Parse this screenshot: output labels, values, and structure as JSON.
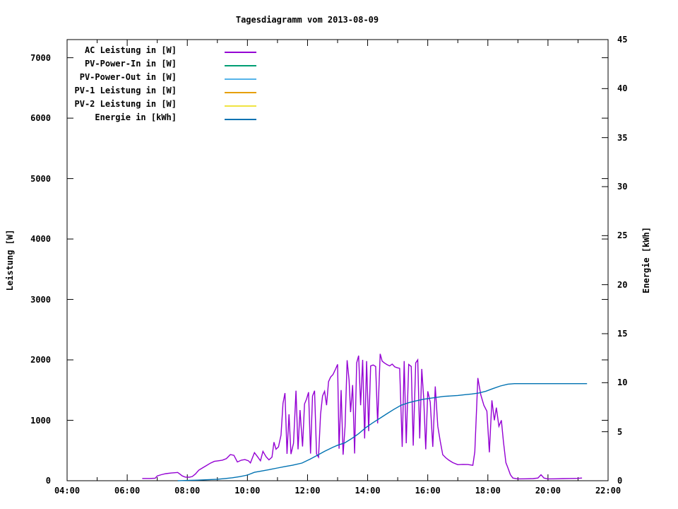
{
  "title": "Tagesdiagramm vom 2013-08-09",
  "chart_data": {
    "type": "line",
    "title": "Tagesdiagramm vom 2013-08-09",
    "grid": false,
    "legend_position": "top-left-inside",
    "x_axis": {
      "label": "",
      "unit": "time",
      "range_hours": [
        4,
        22
      ],
      "tick_labels": [
        "04:00",
        "06:00",
        "08:00",
        "10:00",
        "12:00",
        "14:00",
        "16:00",
        "18:00",
        "20:00",
        "22:00"
      ],
      "minor_tick_every_hour": true
    },
    "y_axis": {
      "label": "Leistung [W]",
      "ticks": [
        0,
        1000,
        2000,
        3000,
        4000,
        5000,
        6000,
        7000
      ],
      "range": [
        0,
        7300
      ]
    },
    "y2_axis": {
      "label": "Energie [kWh]",
      "ticks": [
        0,
        5,
        10,
        15,
        20,
        25,
        30,
        35,
        40,
        45
      ],
      "range": [
        0,
        45
      ]
    },
    "legend": [
      {
        "label": "AC Leistung in [W]",
        "color": "#9400d3"
      },
      {
        "label": "PV-Power-In in [W]",
        "color": "#009e73"
      },
      {
        "label": "PV-Power-Out in [W]",
        "color": "#56b4e9"
      },
      {
        "label": "PV-1 Leistung in [W]",
        "color": "#e69f00"
      },
      {
        "label": "PV-2 Leistung in [W]",
        "color": "#f0e442"
      },
      {
        "label": "Energie in [kWh]",
        "color": "#0072b2"
      }
    ],
    "series": [
      {
        "name": "AC Leistung in [W]",
        "color": "#9400d3",
        "axis": "y1",
        "points": [
          [
            "06:30",
            38
          ],
          [
            "06:45",
            38
          ],
          [
            "06:56",
            42
          ],
          [
            "07:00",
            80
          ],
          [
            "07:08",
            100
          ],
          [
            "07:17",
            117
          ],
          [
            "07:28",
            128
          ],
          [
            "07:41",
            137
          ],
          [
            "07:50",
            80
          ],
          [
            "07:56",
            60
          ],
          [
            "08:04",
            58
          ],
          [
            "08:10",
            70
          ],
          [
            "08:16",
            110
          ],
          [
            "08:23",
            176
          ],
          [
            "08:30",
            210
          ],
          [
            "08:38",
            250
          ],
          [
            "08:46",
            290
          ],
          [
            "08:54",
            320
          ],
          [
            "09:02",
            330
          ],
          [
            "09:10",
            340
          ],
          [
            "09:18",
            365
          ],
          [
            "09:26",
            433
          ],
          [
            "09:33",
            420
          ],
          [
            "09:40",
            310
          ],
          [
            "09:48",
            340
          ],
          [
            "09:55",
            350
          ],
          [
            "10:02",
            330
          ],
          [
            "10:06",
            295
          ],
          [
            "10:14",
            464
          ],
          [
            "10:20",
            400
          ],
          [
            "10:26",
            330
          ],
          [
            "10:31",
            487
          ],
          [
            "10:37",
            400
          ],
          [
            "10:43",
            345
          ],
          [
            "10:49",
            390
          ],
          [
            "10:53",
            638
          ],
          [
            "10:57",
            522
          ],
          [
            "11:02",
            560
          ],
          [
            "11:07",
            754
          ],
          [
            "11:11",
            1280
          ],
          [
            "11:15",
            1451
          ],
          [
            "11:19",
            445
          ],
          [
            "11:23",
            1100
          ],
          [
            "11:27",
            440
          ],
          [
            "11:32",
            620
          ],
          [
            "11:37",
            1489
          ],
          [
            "11:41",
            520
          ],
          [
            "11:45",
            1170
          ],
          [
            "11:50",
            566
          ],
          [
            "11:54",
            1270
          ],
          [
            "11:58",
            1350
          ],
          [
            "12:02",
            1465
          ],
          [
            "12:06",
            449
          ],
          [
            "12:10",
            1400
          ],
          [
            "12:14",
            1489
          ],
          [
            "12:18",
            445
          ],
          [
            "12:22",
            390
          ],
          [
            "12:26",
            1100
          ],
          [
            "12:30",
            1404
          ],
          [
            "12:34",
            1480
          ],
          [
            "12:38",
            1250
          ],
          [
            "12:42",
            1640
          ],
          [
            "12:46",
            1715
          ],
          [
            "12:51",
            1760
          ],
          [
            "12:56",
            1850
          ],
          [
            "13:00",
            1926
          ],
          [
            "13:03",
            530
          ],
          [
            "13:07",
            1500
          ],
          [
            "13:11",
            430
          ],
          [
            "13:15",
            900
          ],
          [
            "13:19",
            1993
          ],
          [
            "13:23",
            1660
          ],
          [
            "13:26",
            1135
          ],
          [
            "13:30",
            1583
          ],
          [
            "13:34",
            450
          ],
          [
            "13:38",
            1950
          ],
          [
            "13:42",
            2070
          ],
          [
            "13:46",
            1250
          ],
          [
            "13:50",
            2000
          ],
          [
            "13:54",
            700
          ],
          [
            "13:58",
            1980
          ],
          [
            "14:02",
            820
          ],
          [
            "14:06",
            1900
          ],
          [
            "14:11",
            1915
          ],
          [
            "14:16",
            1890
          ],
          [
            "14:20",
            950
          ],
          [
            "14:25",
            2100
          ],
          [
            "14:29",
            1980
          ],
          [
            "14:34",
            1945
          ],
          [
            "14:39",
            1920
          ],
          [
            "14:44",
            1900
          ],
          [
            "14:49",
            1930
          ],
          [
            "14:54",
            1885
          ],
          [
            "14:59",
            1870
          ],
          [
            "15:04",
            1860
          ],
          [
            "15:09",
            560
          ],
          [
            "15:13",
            1980
          ],
          [
            "15:17",
            620
          ],
          [
            "15:22",
            1925
          ],
          [
            "15:27",
            1890
          ],
          [
            "15:31",
            580
          ],
          [
            "15:36",
            1950
          ],
          [
            "15:40",
            2000
          ],
          [
            "15:44",
            700
          ],
          [
            "15:48",
            1850
          ],
          [
            "15:52",
            1350
          ],
          [
            "15:56",
            520
          ],
          [
            "16:00",
            1480
          ],
          [
            "16:05",
            1300
          ],
          [
            "16:10",
            560
          ],
          [
            "16:15",
            1560
          ],
          [
            "16:20",
            900
          ],
          [
            "16:25",
            650
          ],
          [
            "16:30",
            430
          ],
          [
            "16:36",
            380
          ],
          [
            "16:42",
            340
          ],
          [
            "16:50",
            300
          ],
          [
            "17:00",
            265
          ],
          [
            "17:10",
            270
          ],
          [
            "17:20",
            268
          ],
          [
            "17:30",
            255
          ],
          [
            "17:34",
            480
          ],
          [
            "17:40",
            1700
          ],
          [
            "17:46",
            1420
          ],
          [
            "17:52",
            1250
          ],
          [
            "17:58",
            1150
          ],
          [
            "18:03",
            470
          ],
          [
            "18:08",
            1330
          ],
          [
            "18:13",
            1000
          ],
          [
            "18:17",
            1210
          ],
          [
            "18:22",
            900
          ],
          [
            "18:27",
            1000
          ],
          [
            "18:31",
            650
          ],
          [
            "18:36",
            300
          ],
          [
            "18:40",
            215
          ],
          [
            "18:45",
            100
          ],
          [
            "18:50",
            45
          ],
          [
            "19:00",
            30
          ],
          [
            "19:15",
            32
          ],
          [
            "19:30",
            35
          ],
          [
            "19:40",
            45
          ],
          [
            "19:46",
            100
          ],
          [
            "19:52",
            45
          ],
          [
            "20:00",
            30
          ],
          [
            "20:15",
            32
          ],
          [
            "20:30",
            35
          ],
          [
            "20:45",
            38
          ],
          [
            "21:00",
            40
          ],
          [
            "21:08",
            45
          ]
        ]
      },
      {
        "name": "PV-Power-In in [W]",
        "color": "#009e73",
        "axis": "y1",
        "points": []
      },
      {
        "name": "PV-Power-Out in [W]",
        "color": "#56b4e9",
        "axis": "y1",
        "points": []
      },
      {
        "name": "PV-1 Leistung in [W]",
        "color": "#e69f00",
        "axis": "y1",
        "points": []
      },
      {
        "name": "PV-2 Leistung in [W]",
        "color": "#f0e442",
        "axis": "y1",
        "points": []
      },
      {
        "name": "Energie in [kWh]",
        "color": "#0072b2",
        "axis": "y2",
        "points": [
          [
            "07:41",
            0
          ],
          [
            "08:00",
            0.03
          ],
          [
            "08:20",
            0.06
          ],
          [
            "08:40",
            0.1
          ],
          [
            "09:00",
            0.15
          ],
          [
            "09:15",
            0.22
          ],
          [
            "09:30",
            0.3
          ],
          [
            "09:45",
            0.42
          ],
          [
            "10:00",
            0.58
          ],
          [
            "10:14",
            0.86
          ],
          [
            "10:30",
            1.0
          ],
          [
            "10:45",
            1.15
          ],
          [
            "11:00",
            1.3
          ],
          [
            "11:15",
            1.45
          ],
          [
            "11:30",
            1.58
          ],
          [
            "11:49",
            1.8
          ],
          [
            "12:05",
            2.2
          ],
          [
            "12:20",
            2.6
          ],
          [
            "12:34",
            3.0
          ],
          [
            "12:50",
            3.4
          ],
          [
            "13:00",
            3.62
          ],
          [
            "13:14",
            3.85
          ],
          [
            "13:28",
            4.3
          ],
          [
            "13:42",
            4.8
          ],
          [
            "13:56",
            5.4
          ],
          [
            "14:10",
            5.9
          ],
          [
            "14:24",
            6.35
          ],
          [
            "14:39",
            6.85
          ],
          [
            "14:53",
            7.3
          ],
          [
            "15:07",
            7.7
          ],
          [
            "15:21",
            7.95
          ],
          [
            "15:35",
            8.13
          ],
          [
            "15:50",
            8.3
          ],
          [
            "16:04",
            8.41
          ],
          [
            "16:18",
            8.5
          ],
          [
            "16:32",
            8.6
          ],
          [
            "16:46",
            8.65
          ],
          [
            "17:00",
            8.7
          ],
          [
            "17:14",
            8.78
          ],
          [
            "17:28",
            8.85
          ],
          [
            "17:42",
            8.95
          ],
          [
            "17:56",
            9.13
          ],
          [
            "18:10",
            9.4
          ],
          [
            "18:25",
            9.66
          ],
          [
            "18:40",
            9.85
          ],
          [
            "18:53",
            9.9
          ],
          [
            "19:30",
            9.9
          ],
          [
            "20:15",
            9.9
          ],
          [
            "21:00",
            9.9
          ],
          [
            "21:18",
            9.9
          ]
        ]
      }
    ]
  }
}
